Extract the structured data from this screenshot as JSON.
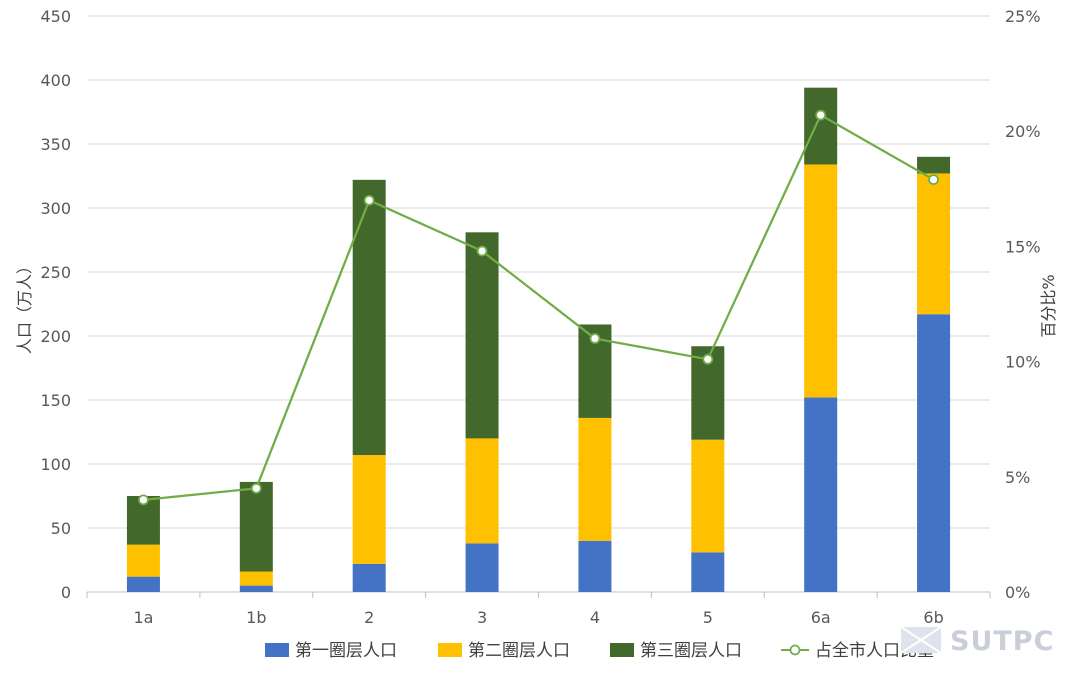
{
  "chart_data": {
    "type": "bar",
    "stacked": true,
    "categories": [
      "1a",
      "1b",
      "2",
      "3",
      "4",
      "5",
      "6a",
      "6b"
    ],
    "series": [
      {
        "name": "第一圈层人口",
        "kind": "bar",
        "axis": "left",
        "color": "#4472C4",
        "values": [
          12,
          5,
          22,
          38,
          40,
          31,
          152,
          217
        ]
      },
      {
        "name": "第二圈层人口",
        "kind": "bar",
        "axis": "left",
        "color": "#FFC000",
        "values": [
          25,
          11,
          85,
          82,
          96,
          88,
          182,
          110
        ]
      },
      {
        "name": "第三圈层人口",
        "kind": "bar",
        "axis": "left",
        "color": "#43682B",
        "values": [
          38,
          70,
          215,
          161,
          73,
          73,
          60,
          13
        ]
      },
      {
        "name": "占全市人口比重",
        "kind": "line",
        "axis": "right",
        "color": "#70AD47",
        "values": [
          4.0,
          4.5,
          17.0,
          14.8,
          11.0,
          10.1,
          20.7,
          17.9
        ]
      }
    ],
    "ylabel": "人口（万人）",
    "y2label": "百分比%",
    "ylim": [
      0,
      450
    ],
    "yticks": [
      0,
      50,
      100,
      150,
      200,
      250,
      300,
      350,
      400,
      450
    ],
    "y2lim": [
      0,
      25
    ],
    "y2ticks": [
      "0%",
      "5%",
      "10%",
      "15%",
      "20%",
      "25%"
    ],
    "grid": true,
    "legend_position": "bottom"
  },
  "watermark": {
    "text": "SUTPC"
  }
}
